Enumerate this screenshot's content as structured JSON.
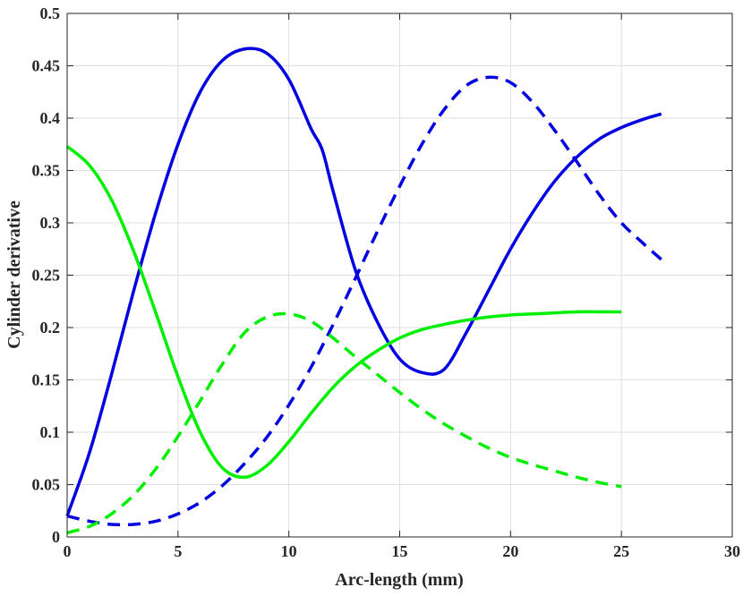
{
  "chart_data": {
    "type": "line",
    "title": "",
    "xlabel": "Arc-length (mm)",
    "ylabel": "Cylinder derivative",
    "xlim": [
      0,
      30
    ],
    "ylim": [
      0,
      0.5
    ],
    "xticks": [
      0,
      5,
      10,
      15,
      20,
      25,
      30
    ],
    "yticks": [
      0,
      0.05,
      0.1,
      0.15,
      0.2,
      0.25,
      0.3,
      0.35,
      0.4,
      0.45,
      0.5
    ],
    "xtick_labels": [
      "0",
      "5",
      "10",
      "15",
      "20",
      "25",
      "30"
    ],
    "ytick_labels": [
      "0",
      "0.05",
      "0.1",
      "0.15",
      "0.2",
      "0.25",
      "0.3",
      "0.35",
      "0.4",
      "0.45",
      "0.5"
    ],
    "grid": true,
    "legend": "none",
    "series": [
      {
        "color": "#0000e0",
        "style": "solid",
        "x": [
          0,
          1,
          2,
          3,
          4,
          5,
          6,
          7,
          8,
          9,
          10,
          11,
          11.5,
          12,
          13,
          14,
          15,
          16,
          17,
          18,
          19,
          20,
          21,
          22,
          23,
          24,
          25,
          26,
          26.8
        ],
        "y": [
          0.02,
          0.08,
          0.155,
          0.235,
          0.31,
          0.375,
          0.425,
          0.455,
          0.466,
          0.462,
          0.437,
          0.39,
          0.37,
          0.33,
          0.255,
          0.205,
          0.17,
          0.157,
          0.16,
          0.195,
          0.235,
          0.275,
          0.31,
          0.34,
          0.363,
          0.38,
          0.391,
          0.399,
          0.404
        ]
      },
      {
        "color": "#0000e0",
        "style": "dashed",
        "x": [
          0,
          1,
          2,
          3,
          4,
          5,
          6,
          7,
          8,
          9,
          10,
          11,
          12,
          13,
          14,
          15,
          16,
          17,
          18,
          19,
          20,
          21,
          22,
          23,
          24,
          25,
          26,
          26.8
        ],
        "y": [
          0.02,
          0.015,
          0.012,
          0.012,
          0.015,
          0.022,
          0.033,
          0.049,
          0.07,
          0.095,
          0.126,
          0.162,
          0.203,
          0.247,
          0.292,
          0.335,
          0.375,
          0.408,
          0.431,
          0.439,
          0.434,
          0.415,
          0.388,
          0.358,
          0.327,
          0.3,
          0.28,
          0.265
        ]
      },
      {
        "color": "#00ee00",
        "style": "solid",
        "x": [
          0,
          1,
          2,
          3,
          4,
          5,
          6,
          7,
          8,
          9,
          10,
          11,
          12,
          13,
          14,
          15,
          16,
          17,
          18,
          19,
          20,
          21,
          22,
          23,
          24,
          25
        ],
        "y": [
          0.373,
          0.355,
          0.322,
          0.273,
          0.214,
          0.153,
          0.1,
          0.066,
          0.057,
          0.068,
          0.091,
          0.118,
          0.143,
          0.163,
          0.178,
          0.19,
          0.198,
          0.203,
          0.207,
          0.21,
          0.212,
          0.213,
          0.214,
          0.215,
          0.215,
          0.215
        ]
      },
      {
        "color": "#00ee00",
        "style": "dashed",
        "x": [
          0,
          1,
          2,
          3,
          4,
          5,
          6,
          7,
          8,
          9,
          10,
          11,
          12,
          13,
          14,
          15,
          16,
          17,
          18,
          19,
          20,
          21,
          22,
          23,
          24,
          25
        ],
        "y": [
          0.004,
          0.01,
          0.022,
          0.04,
          0.065,
          0.096,
          0.13,
          0.165,
          0.195,
          0.21,
          0.213,
          0.206,
          0.19,
          0.172,
          0.155,
          0.138,
          0.122,
          0.108,
          0.096,
          0.085,
          0.076,
          0.069,
          0.063,
          0.057,
          0.052,
          0.048
        ]
      }
    ]
  }
}
